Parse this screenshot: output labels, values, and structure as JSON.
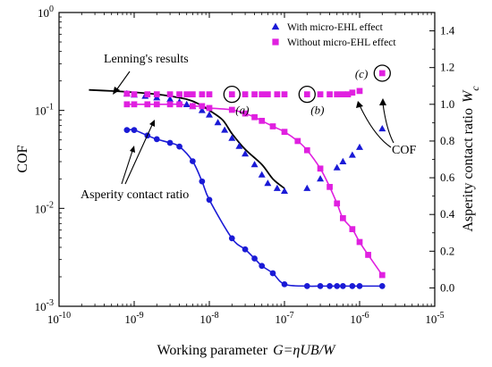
{
  "chart_data": {
    "type": "scatter",
    "title": "",
    "xlabel": "Working parameter",
    "xlabel_math": "G=ηUB/W",
    "ylabel_left": "COF",
    "ylabel_right": "Asperity contact ratio",
    "ylabel_right_math": "W",
    "ylabel_right_math_sub": "c",
    "xscale": "log",
    "yscale_left": "log",
    "yscale_right": "linear",
    "xlim": [
      1e-10,
      1e-05
    ],
    "ylim_left": [
      0.001,
      1
    ],
    "ylim_right": [
      -0.1,
      1.5
    ],
    "x_ticks": [
      {
        "v": 1e-10,
        "base": "10",
        "exp": "-10"
      },
      {
        "v": 1e-09,
        "base": "10",
        "exp": "-9"
      },
      {
        "v": 1e-08,
        "base": "10",
        "exp": "-8"
      },
      {
        "v": 1e-07,
        "base": "10",
        "exp": "-7"
      },
      {
        "v": 1e-06,
        "base": "10",
        "exp": "-6"
      },
      {
        "v": 1e-05,
        "base": "10",
        "exp": "-5"
      }
    ],
    "y_left_ticks": [
      {
        "v": 0.001,
        "base": "10",
        "exp": "-3"
      },
      {
        "v": 0.01,
        "base": "10",
        "exp": "-2"
      },
      {
        "v": 0.1,
        "base": "10",
        "exp": "-1"
      },
      {
        "v": 1,
        "base": "10",
        "exp": "0"
      }
    ],
    "y_right_ticks": [
      "0.0",
      "0.2",
      "0.4",
      "0.6",
      "0.8",
      "1.0",
      "1.2",
      "1.4"
    ],
    "legend": {
      "position": "top-right",
      "entries": [
        {
          "label": "With micro-EHL effect",
          "marker": "triangle",
          "color": "#1a1ad6"
        },
        {
          "label": "Without micro-EHL effect",
          "marker": "square",
          "color": "#e020e0"
        }
      ]
    },
    "series": [
      {
        "name": "With micro-EHL effect",
        "axis": "left",
        "color": "#1a1ad6",
        "marker": "triangle",
        "points": [
          [
            8e-10,
            0.148
          ],
          [
            1e-09,
            0.144
          ],
          [
            1.4e-09,
            0.14
          ],
          [
            2e-09,
            0.135
          ],
          [
            3e-09,
            0.13
          ],
          [
            4e-09,
            0.122
          ],
          [
            5e-09,
            0.115
          ],
          [
            6e-09,
            0.11
          ],
          [
            8e-09,
            0.1
          ],
          [
            1e-08,
            0.09
          ],
          [
            1.3e-08,
            0.075
          ],
          [
            1.6e-08,
            0.063
          ],
          [
            2e-08,
            0.052
          ],
          [
            2.5e-08,
            0.043
          ],
          [
            3e-08,
            0.036
          ],
          [
            4e-08,
            0.028
          ],
          [
            5e-08,
            0.022
          ],
          [
            6e-08,
            0.018
          ],
          [
            8e-08,
            0.016
          ],
          [
            1e-07,
            0.015
          ],
          [
            2e-07,
            0.016
          ],
          [
            3e-07,
            0.02
          ],
          [
            5e-07,
            0.026
          ],
          [
            6e-07,
            0.03
          ],
          [
            8e-07,
            0.035
          ],
          [
            1e-06,
            0.042
          ],
          [
            2e-06,
            0.065
          ]
        ]
      },
      {
        "name": "Without micro-EHL effect",
        "axis": "left",
        "color": "#e020e0",
        "marker": "square",
        "points": [
          [
            8e-10,
            0.148
          ],
          [
            1e-09,
            0.146
          ],
          [
            1.5e-09,
            0.146
          ],
          [
            2e-09,
            0.146
          ],
          [
            3e-09,
            0.146
          ],
          [
            4e-09,
            0.146
          ],
          [
            5e-09,
            0.146
          ],
          [
            6e-09,
            0.146
          ],
          [
            8e-09,
            0.146
          ],
          [
            1e-08,
            0.146
          ],
          [
            2e-08,
            0.146
          ],
          [
            3e-08,
            0.146
          ],
          [
            4e-08,
            0.146
          ],
          [
            5e-08,
            0.146
          ],
          [
            6e-08,
            0.146
          ],
          [
            8e-08,
            0.146
          ],
          [
            1e-07,
            0.146
          ],
          [
            2e-07,
            0.146
          ],
          [
            3e-07,
            0.146
          ],
          [
            4e-07,
            0.146
          ],
          [
            5e-07,
            0.146
          ],
          [
            6e-07,
            0.146
          ],
          [
            7e-07,
            0.146
          ],
          [
            8e-07,
            0.152
          ],
          [
            1e-06,
            0.158
          ],
          [
            2e-06,
            0.24
          ]
        ]
      },
      {
        "name": "Asperity contact ratio (without micro-EHL effect)",
        "axis": "right",
        "color": "#e020e0",
        "marker": "square",
        "points": [
          [
            8e-10,
            1.0
          ],
          [
            1e-09,
            1.0
          ],
          [
            1.5e-09,
            1.0
          ],
          [
            2e-09,
            1.0
          ],
          [
            3e-09,
            1.0
          ],
          [
            4e-09,
            1.0
          ],
          [
            6e-09,
            0.99
          ],
          [
            8e-09,
            0.99
          ],
          [
            1e-08,
            0.98
          ],
          [
            2e-08,
            0.97
          ],
          [
            3e-08,
            0.95
          ],
          [
            4e-08,
            0.93
          ],
          [
            5e-08,
            0.91
          ],
          [
            7e-08,
            0.88
          ],
          [
            1e-07,
            0.85
          ],
          [
            1.5e-07,
            0.8
          ],
          [
            2e-07,
            0.75
          ],
          [
            3e-07,
            0.65
          ],
          [
            4e-07,
            0.55
          ],
          [
            5e-07,
            0.46
          ],
          [
            6e-07,
            0.38
          ],
          [
            8e-07,
            0.32
          ],
          [
            1e-06,
            0.25
          ],
          [
            1.3e-06,
            0.18
          ],
          [
            2e-06,
            0.07
          ]
        ]
      },
      {
        "name": "Asperity contact ratio (with micro-EHL effect)",
        "axis": "right",
        "color": "#1a1ad6",
        "marker": "circle",
        "points": [
          [
            8e-10,
            0.86
          ],
          [
            1e-09,
            0.86
          ],
          [
            1.5e-09,
            0.83
          ],
          [
            2e-09,
            0.81
          ],
          [
            3e-09,
            0.79
          ],
          [
            4e-09,
            0.77
          ],
          [
            6e-09,
            0.69
          ],
          [
            8e-09,
            0.58
          ],
          [
            1e-08,
            0.48
          ],
          [
            2e-08,
            0.27
          ],
          [
            3e-08,
            0.21
          ],
          [
            4e-08,
            0.16
          ],
          [
            5e-08,
            0.12
          ],
          [
            7e-08,
            0.08
          ],
          [
            1e-07,
            0.02
          ],
          [
            2e-07,
            0.01
          ],
          [
            3e-07,
            0.01
          ],
          [
            4e-07,
            0.01
          ],
          [
            5e-07,
            0.01
          ],
          [
            6e-07,
            0.01
          ],
          [
            8e-07,
            0.01
          ],
          [
            1e-06,
            0.01
          ],
          [
            2e-06,
            0.01
          ]
        ]
      },
      {
        "name": "Lenning's results",
        "axis": "left",
        "color": "#000000",
        "marker": "none",
        "points": [
          [
            2.5e-10,
            0.162
          ],
          [
            5e-10,
            0.158
          ],
          [
            1e-09,
            0.153
          ],
          [
            2e-09,
            0.146
          ],
          [
            3e-09,
            0.14
          ],
          [
            5e-09,
            0.13
          ],
          [
            7e-09,
            0.118
          ],
          [
            1e-08,
            0.1
          ],
          [
            1.5e-08,
            0.08
          ],
          [
            2e-08,
            0.058
          ],
          [
            3e-08,
            0.04
          ],
          [
            5e-08,
            0.028
          ],
          [
            7e-08,
            0.02
          ],
          [
            1e-07,
            0.016
          ]
        ]
      }
    ],
    "annotations": [
      {
        "id": "lenning",
        "text": "Lenning's results"
      },
      {
        "id": "asperity",
        "text": "Asperity contact ratio"
      },
      {
        "id": "cof",
        "text": "COF"
      },
      {
        "id": "a",
        "text": "(a)"
      },
      {
        "id": "b",
        "text": "(b)"
      },
      {
        "id": "c",
        "text": "(c)"
      }
    ]
  }
}
